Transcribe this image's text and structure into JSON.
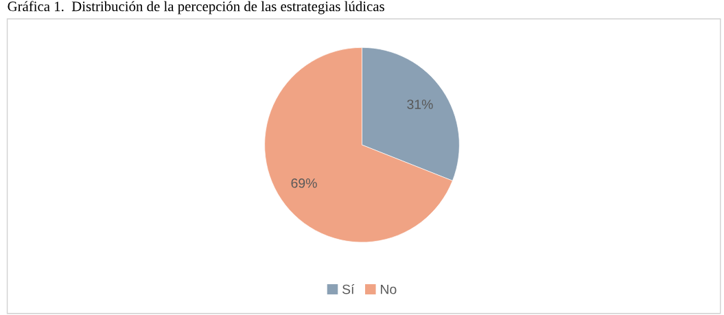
{
  "chart_data": {
    "type": "pie",
    "title": "Gráfica 1.  Distribución de la percepción de las estrategias lúdicas",
    "categories": [
      "Sí",
      "No"
    ],
    "values": [
      31,
      69
    ],
    "colors": [
      "#8aa0b4",
      "#f0a384"
    ],
    "value_labels": [
      "31%",
      "69%"
    ],
    "legend": "bottom"
  }
}
